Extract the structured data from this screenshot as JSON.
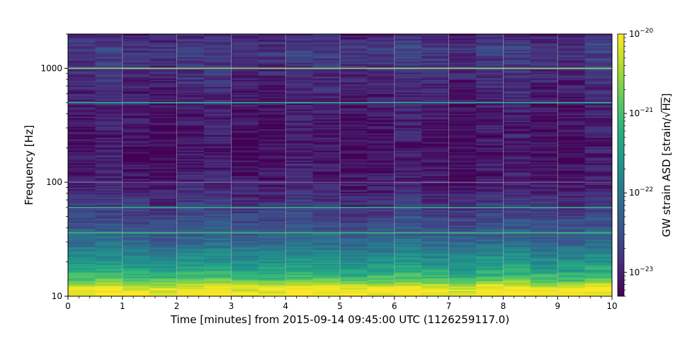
{
  "chart_data": {
    "type": "heatmap",
    "title": "",
    "xlabel": "Time [minutes] from 2015-09-14 09:45:00 UTC (1126259117.0)",
    "ylabel": "Frequency [Hz]",
    "xlim": [
      0,
      10
    ],
    "ylim": [
      10,
      2000
    ],
    "yscale": "log",
    "grid": true,
    "x_ticks": [
      "0",
      "1",
      "2",
      "3",
      "4",
      "5",
      "6",
      "7",
      "8",
      "9",
      "10"
    ],
    "y_ticks": [
      {
        "value": 10,
        "label": "10"
      },
      {
        "value": 100,
        "label": "100"
      },
      {
        "value": 1000,
        "label": "1000"
      }
    ],
    "colorbar": {
      "label": "GW strain ASD [strain/√Hz]",
      "label_prefix": "GW strain ASD [strain/",
      "label_radicand": "Hz",
      "label_suffix": "]",
      "scale": "log",
      "range": [
        5e-24,
        1e-20
      ],
      "ticks": [
        {
          "value": 1e-20,
          "label": "10",
          "exp": "−20"
        },
        {
          "value": 1e-21,
          "label": "10",
          "exp": "−21"
        },
        {
          "value": 1e-22,
          "label": "10",
          "exp": "−22"
        },
        {
          "value": 1e-23,
          "label": "10",
          "exp": "−23"
        }
      ],
      "colormap": "viridis",
      "colors": [
        "#440154",
        "#472d7b",
        "#3b528b",
        "#2c728e",
        "#21918c",
        "#28ae80",
        "#5ec962",
        "#addc30",
        "#fde725"
      ]
    },
    "time_bins": 20,
    "asd_profile": [
      {
        "freq": 10,
        "asd": 1e-20
      },
      {
        "freq": 12,
        "asd": 8e-21
      },
      {
        "freq": 14,
        "asd": 1.2e-21
      },
      {
        "freq": 16,
        "asd": 6e-22
      },
      {
        "freq": 20,
        "asd": 2.5e-22
      },
      {
        "freq": 25,
        "asd": 1.2e-22
      },
      {
        "freq": 30,
        "asd": 7e-23
      },
      {
        "freq": 40,
        "asd": 3.5e-23
      },
      {
        "freq": 60,
        "asd": 1.8e-23
      },
      {
        "freq": 100,
        "asd": 9e-24
      },
      {
        "freq": 200,
        "asd": 7e-24
      },
      {
        "freq": 400,
        "asd": 8e-24
      },
      {
        "freq": 700,
        "asd": 1.1e-23
      },
      {
        "freq": 1000,
        "asd": 1.4e-23
      },
      {
        "freq": 1500,
        "asd": 1.9e-23
      },
      {
        "freq": 2000,
        "asd": 1e-23
      }
    ],
    "lines": [
      {
        "freq": 1000,
        "asd": 2e-21
      },
      {
        "freq": 500,
        "asd": 5e-22
      },
      {
        "freq": 60,
        "asd": 5e-22
      },
      {
        "freq": 36,
        "asd": 8e-22
      }
    ]
  }
}
